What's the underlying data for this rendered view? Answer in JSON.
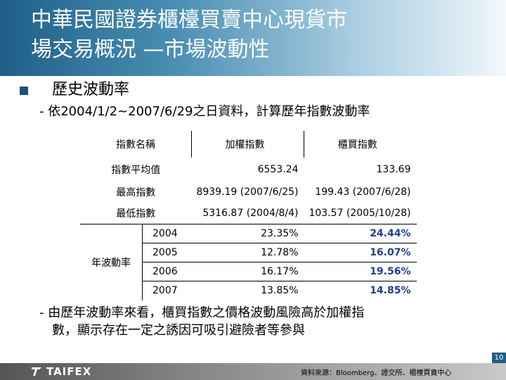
{
  "title": {
    "line1": "中華民國證券櫃檯買賣中心現貨市",
    "line2": "場交易概況 —市場波動性"
  },
  "section_heading": "歷史波動率",
  "intro": "- 依2004/1/2~2007/6/29之日資料，計算歷年指數波動率",
  "table": {
    "headers": [
      "指數名稱",
      "加權指數",
      "櫃買指數"
    ],
    "avg": {
      "label": "指數平均值",
      "taiex": "6553.24",
      "otc": "133.69"
    },
    "high": {
      "label": "最高指數",
      "taiex": "8939.19 (2007/6/25)",
      "otc": "199.43 (2007/6/28)"
    },
    "low": {
      "label": "最低指數",
      "taiex": "5316.87 (2004/8/4)",
      "otc": "103.57 (2005/10/28)"
    },
    "vol_label": "年波動率",
    "years": [
      {
        "year": "2004",
        "taiex": "23.35%",
        "otc": "24.44%"
      },
      {
        "year": "2005",
        "taiex": "12.78%",
        "otc": "16.07%"
      },
      {
        "year": "2006",
        "taiex": "16.17%",
        "otc": "19.56%"
      },
      {
        "year": "2007",
        "taiex": "13.85%",
        "otc": "14.85%"
      }
    ]
  },
  "conclusion": {
    "line1": "- 由歷年波動率來看，櫃買指數之價格波動風險高於加權指",
    "line2": "數，顯示存在一定之誘因可吸引避險者等參與"
  },
  "footer": {
    "logo": "TAIFEX",
    "source": "資料來源：Bloomberg、證交所、櫃檯買賣中心",
    "page": "10"
  },
  "colors": {
    "header": "#1f5f87",
    "volatility_text": "#1f3f8f"
  }
}
